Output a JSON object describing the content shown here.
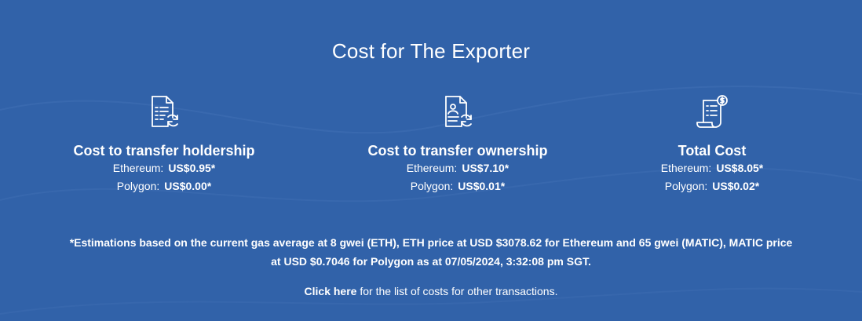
{
  "section": {
    "title": "Cost for The Exporter"
  },
  "cards": [
    {
      "icon": "document-refresh-icon",
      "title": "Cost to transfer holdership",
      "rows": [
        {
          "label": "Ethereum:",
          "value": "US$0.95*"
        },
        {
          "label": "Polygon:",
          "value": "US$0.00*"
        }
      ]
    },
    {
      "icon": "document-person-refresh-icon",
      "title": "Cost to transfer ownership",
      "rows": [
        {
          "label": "Ethereum:",
          "value": "US$7.10*"
        },
        {
          "label": "Polygon:",
          "value": "US$0.01*"
        }
      ]
    },
    {
      "icon": "receipt-dollar-icon",
      "title": "Total Cost",
      "rows": [
        {
          "label": "Ethereum:",
          "value": "US$8.05*"
        },
        {
          "label": "Polygon:",
          "value": "US$0.02*"
        }
      ]
    }
  ],
  "note": {
    "line1": "*Estimations based on the current gas average at 8 gwei (ETH), ETH price at USD $3078.62 for Ethereum and 65 gwei (MATIC), MATIC price",
    "line2": "at USD $0.7046 for Polygon as at 07/05/2024, 3:32:08 pm SGT."
  },
  "cta": {
    "link_text": "Click here",
    "rest_text": " for the list of costs for other transactions."
  },
  "colors": {
    "background": "#3162a9",
    "text": "#ffffff"
  }
}
